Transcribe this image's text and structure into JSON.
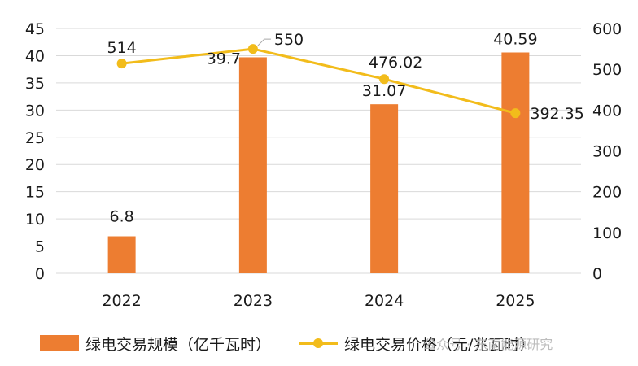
{
  "chart_data": {
    "type": "bar",
    "categories": [
      "2022",
      "2023",
      "2024",
      "2025"
    ],
    "series": [
      {
        "name": "绿电交易规模（亿千瓦时）",
        "type": "bar",
        "axis": "left",
        "values": [
          6.8,
          39.7,
          31.07,
          40.59
        ],
        "labels": [
          "6.8",
          "39.7",
          "31.07",
          "40.59"
        ],
        "color": "#ED7D31"
      },
      {
        "name": "绿电交易价格（元/兆瓦时）",
        "type": "line",
        "axis": "right",
        "values": [
          514,
          550,
          476.02,
          392.35
        ],
        "labels": [
          "514",
          "550",
          "476.02",
          "392.35"
        ],
        "color": "#F2BC1B"
      }
    ],
    "y_left": {
      "min": 0,
      "max": 45,
      "step": 5
    },
    "y_right": {
      "min": 0,
      "max": 600,
      "step": 100
    },
    "grid": true,
    "legend": "bottom"
  },
  "watermark": "公众号 · 东南能源研究"
}
